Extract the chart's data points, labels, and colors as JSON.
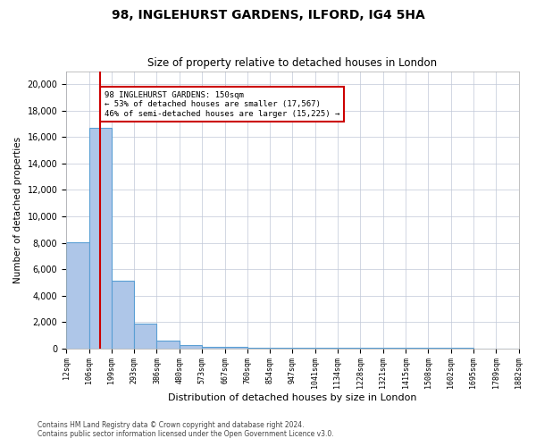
{
  "title": "98, INGLEHURST GARDENS, ILFORD, IG4 5HA",
  "subtitle": "Size of property relative to detached houses in London",
  "xlabel": "Distribution of detached houses by size in London",
  "ylabel": "Number of detached properties",
  "annotation_line1": "98 INGLEHURST GARDENS: 150sqm",
  "annotation_line2": "← 53% of detached houses are smaller (17,567)",
  "annotation_line3": "46% of semi-detached houses are larger (15,225) →",
  "footer_line1": "Contains HM Land Registry data © Crown copyright and database right 2024.",
  "footer_line2": "Contains public sector information licensed under the Open Government Licence v3.0.",
  "property_size": 150,
  "bar_color": "#aec6e8",
  "bar_edge_color": "#5a9fd4",
  "marker_color": "#cc0000",
  "annotation_box_color": "#cc0000",
  "bin_edges": [
    12,
    106,
    199,
    293,
    386,
    480,
    573,
    667,
    760,
    854,
    947,
    1041,
    1134,
    1228,
    1321,
    1415,
    1508,
    1602,
    1695,
    1789,
    1882
  ],
  "bin_labels": [
    "12sqm",
    "106sqm",
    "199sqm",
    "293sqm",
    "386sqm",
    "480sqm",
    "573sqm",
    "667sqm",
    "760sqm",
    "854sqm",
    "947sqm",
    "1041sqm",
    "1134sqm",
    "1228sqm",
    "1321sqm",
    "1415sqm",
    "1508sqm",
    "1602sqm",
    "1695sqm",
    "1789sqm",
    "1882sqm"
  ],
  "bar_heights": [
    8050,
    16700,
    5100,
    1900,
    600,
    250,
    150,
    90,
    80,
    60,
    50,
    45,
    40,
    35,
    30,
    25,
    20,
    18,
    15,
    12
  ],
  "ylim": [
    0,
    21000
  ],
  "yticks": [
    0,
    2000,
    4000,
    6000,
    8000,
    10000,
    12000,
    14000,
    16000,
    18000,
    20000
  ],
  "background_color": "#ffffff",
  "grid_color": "#c0c8d8"
}
